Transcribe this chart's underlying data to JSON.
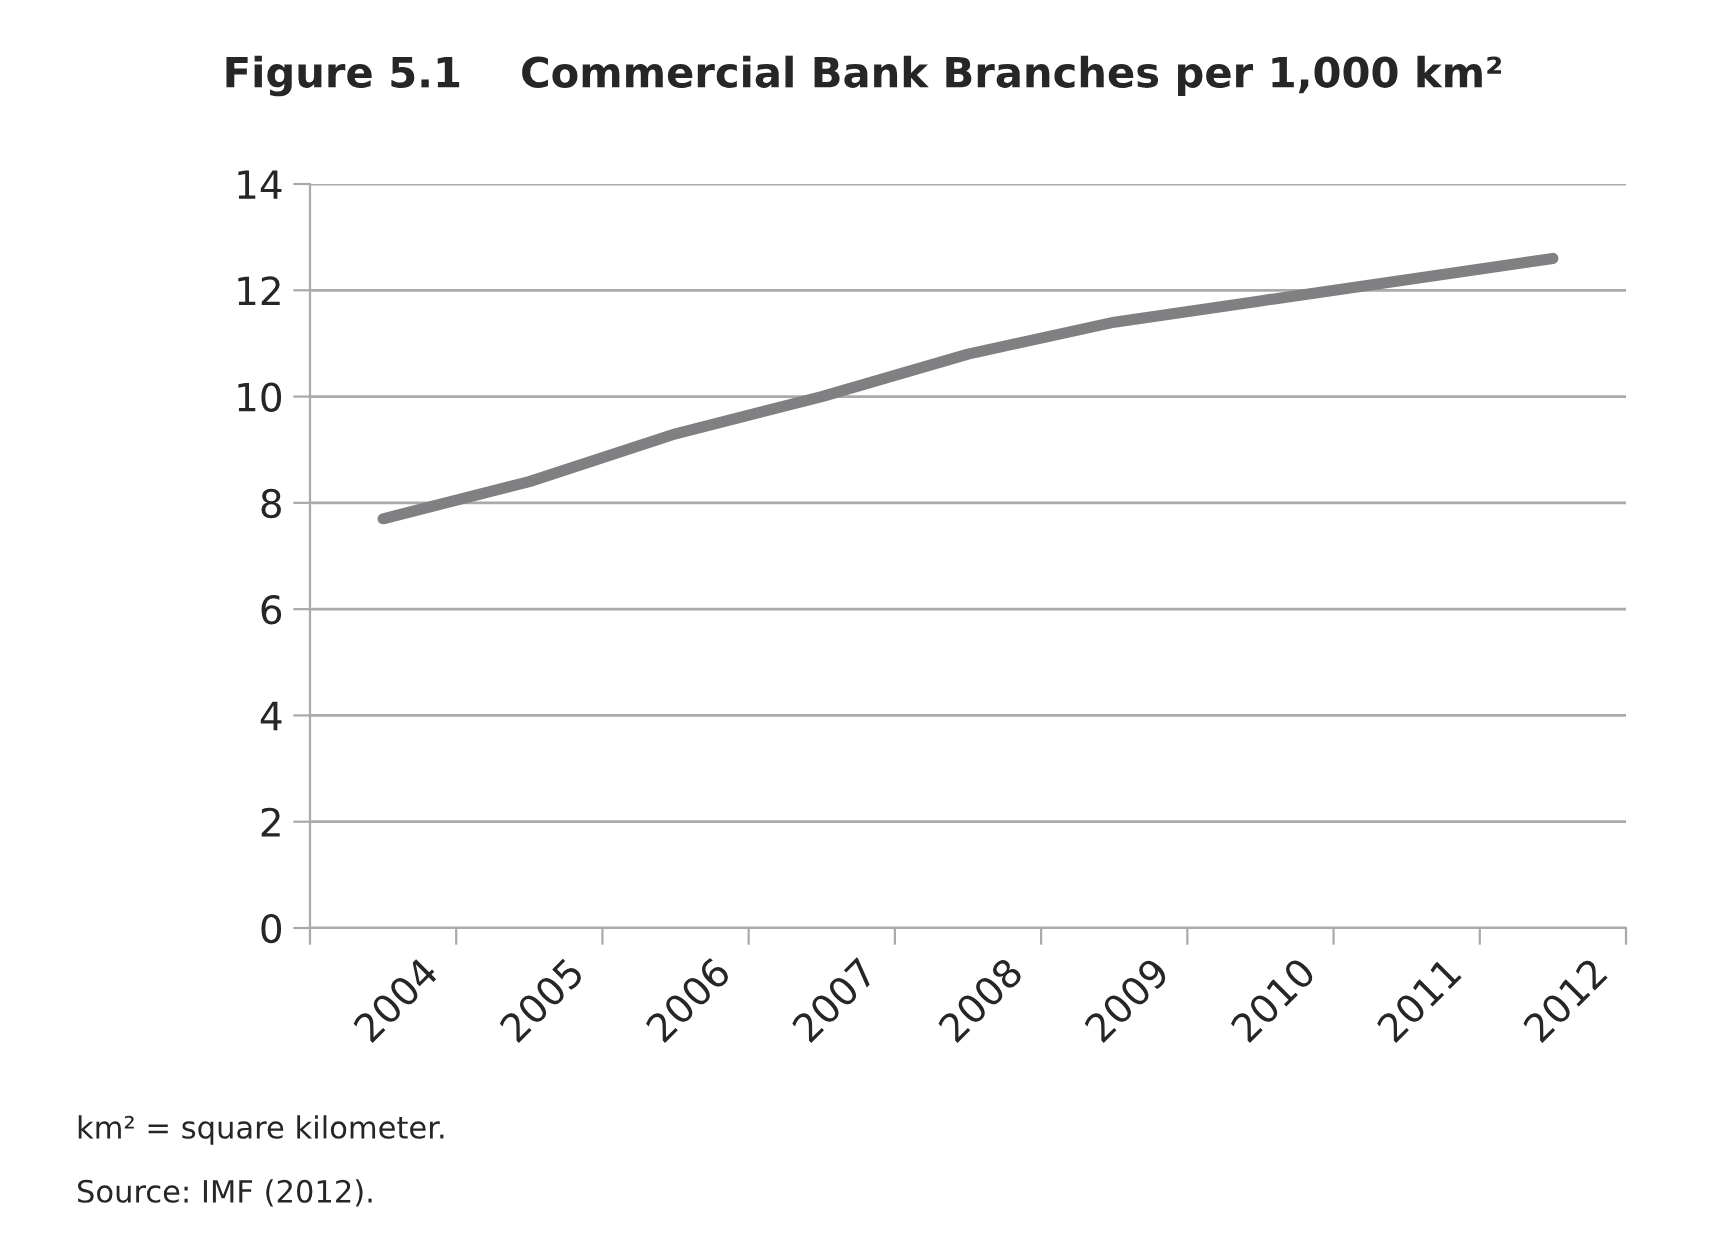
{
  "chart_data": {
    "type": "line",
    "title": "Figure 5.1    Commercial Bank Branches per 1,000 km²",
    "categories": [
      "2004",
      "2005",
      "2006",
      "2007",
      "2008",
      "2009",
      "2010",
      "2011",
      "2012"
    ],
    "series": [
      {
        "color": "#808083",
        "values": [
          7.7,
          8.4,
          9.3,
          10.0,
          10.8,
          11.4,
          11.8,
          12.2,
          12.6
        ]
      }
    ],
    "ylim": [
      0,
      14
    ],
    "yticks": [
      0,
      2,
      4,
      6,
      8,
      10,
      12,
      14
    ],
    "grid": "y",
    "legend": false,
    "marker": "none",
    "line_style": "solid",
    "annotations": [
      "km² = square kilometer.",
      "Source: IMF (2012)."
    ]
  }
}
